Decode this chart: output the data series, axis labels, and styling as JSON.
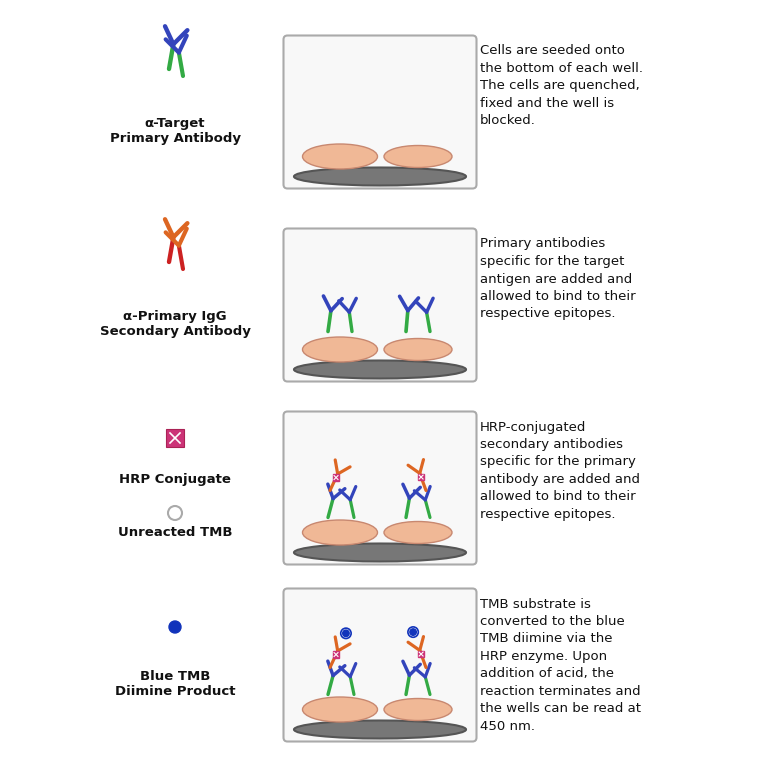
{
  "bg_color": "#ffffff",
  "steps": [
    {
      "legend_label": "α-Target\nPrimary Antibody",
      "description": "Cells are seeded onto\nthe bottom of each well.\nThe cells are quenched,\nfixed and the well is\nblocked.",
      "well_content": "cells_only",
      "legend_style": "primary_green_blue",
      "legend_style2": null
    },
    {
      "legend_label": "α-Primary IgG\nSecondary Antibody",
      "description": "Primary antibodies\nspecific for the target\nantigen are added and\nallowed to bind to their\nrespective epitopes.",
      "well_content": "primary_antibodies",
      "legend_style": "secondary_orange_red",
      "legend_style2": null
    },
    {
      "legend_label": "HRP Conjugate",
      "legend_label2": "Unreacted TMB",
      "description": "HRP-conjugated\nsecondary antibodies\nspecific for the primary\nantibody are added and\nallowed to bind to their\nrespective epitopes.",
      "well_content": "hrp_antibodies",
      "legend_style": "hrp_pink_square",
      "legend_style2": "unreacted_tmb_circle"
    },
    {
      "legend_label": "Blue TMB\nDiimine Product",
      "description": "TMB substrate is\nconverted to the blue\nTMB diimine via the\nHRP enzyme. Upon\naddition of acid, the\nreaction terminates and\nthe wells can be read at\n450 nm.",
      "well_content": "tmb_product",
      "legend_style": "blue_tmb_dot",
      "legend_style2": null
    }
  ],
  "cell_color": "#f0b896",
  "cell_edge_color": "#c88870",
  "well_border_color": "#aaaaaa",
  "well_bg_color": "#f5f5f5",
  "well_bottom_color": "#888888",
  "text_color": "#111111",
  "green_color": "#33aa44",
  "blue_color": "#3344bb",
  "orange_color": "#dd6622",
  "red_stem_color": "#cc2222",
  "hrp_color": "#cc3377",
  "tmb_blue": "#1133bb",
  "tmb_ring_color": "#999999"
}
